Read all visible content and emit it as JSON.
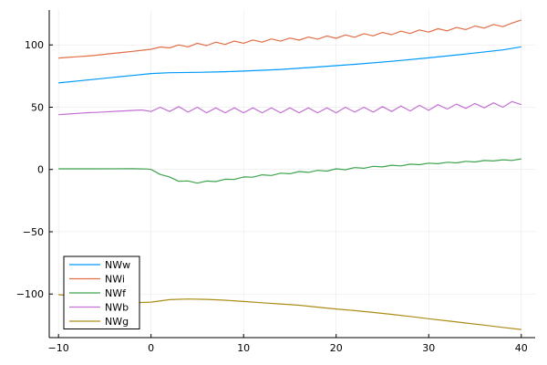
{
  "chart_data": {
    "type": "line",
    "title": "",
    "xlabel": "",
    "ylabel": "",
    "xlim": [
      -11,
      41.5
    ],
    "ylim": [
      -135,
      128
    ],
    "x_ticks": [
      -10,
      0,
      10,
      20,
      30,
      40
    ],
    "y_ticks": [
      -100,
      -50,
      0,
      50,
      100
    ],
    "x_tick_labels": [
      "−10",
      "0",
      "10",
      "20",
      "30",
      "40"
    ],
    "y_tick_labels": [
      "−100",
      "−50",
      "0",
      "50",
      "100"
    ],
    "grid": true,
    "legend_position": "bottom-left",
    "series": [
      {
        "name": "NWw",
        "color": "#009AFA",
        "points": [
          [
            -10,
            69.5
          ],
          [
            -8,
            71
          ],
          [
            -6,
            72.5
          ],
          [
            -4,
            74
          ],
          [
            -2,
            75.5
          ],
          [
            0,
            77
          ],
          [
            2,
            77.7
          ],
          [
            5,
            78
          ],
          [
            8,
            78.5
          ],
          [
            10,
            79
          ],
          [
            14,
            80.3
          ],
          [
            18,
            82.3
          ],
          [
            22,
            84.4
          ],
          [
            26,
            86.8
          ],
          [
            30,
            89.6
          ],
          [
            34,
            92.7
          ],
          [
            38,
            96
          ],
          [
            40,
            98.5
          ]
        ]
      },
      {
        "name": "NWi",
        "color": "#E36F47",
        "points": [
          [
            -10,
            89.5
          ],
          [
            -9,
            90
          ],
          [
            -8,
            90.5
          ],
          [
            -7,
            91
          ],
          [
            -6,
            91.7
          ],
          [
            -5,
            92.5
          ],
          [
            -4,
            93.3
          ],
          [
            -3,
            94
          ],
          [
            -2,
            94.8
          ],
          [
            -1,
            95.7
          ],
          [
            0,
            96.5
          ],
          [
            1,
            98.3
          ],
          [
            2,
            97.6
          ],
          [
            3,
            100
          ],
          [
            4,
            98.4
          ],
          [
            5,
            101.3
          ],
          [
            6,
            99.4
          ],
          [
            7,
            102.2
          ],
          [
            8,
            100.4
          ],
          [
            9,
            103.1
          ],
          [
            10,
            101.3
          ],
          [
            11,
            104
          ],
          [
            12,
            102.2
          ],
          [
            13,
            104.8
          ],
          [
            14,
            103
          ],
          [
            15,
            105.5
          ],
          [
            16,
            103.8
          ],
          [
            17,
            106.3
          ],
          [
            18,
            104.6
          ],
          [
            19,
            107.2
          ],
          [
            20,
            105.3
          ],
          [
            21,
            108
          ],
          [
            22,
            106.2
          ],
          [
            23,
            109
          ],
          [
            24,
            107.3
          ],
          [
            25,
            110
          ],
          [
            26,
            108.2
          ],
          [
            27,
            111
          ],
          [
            28,
            109.2
          ],
          [
            29,
            112
          ],
          [
            30,
            110.3
          ],
          [
            31,
            113
          ],
          [
            32,
            111.3
          ],
          [
            33,
            114
          ],
          [
            34,
            112.3
          ],
          [
            35,
            115.2
          ],
          [
            36,
            113.5
          ],
          [
            37,
            116.4
          ],
          [
            38,
            114.7
          ],
          [
            39,
            117.5
          ],
          [
            40,
            120
          ]
        ]
      },
      {
        "name": "NWf",
        "color": "#3EA44E",
        "points": [
          [
            -10,
            0.5
          ],
          [
            -6,
            0.5
          ],
          [
            -2,
            0.6
          ],
          [
            -0.5,
            0.4
          ],
          [
            0,
            0
          ],
          [
            1,
            -4
          ],
          [
            2,
            -6
          ],
          [
            3,
            -9.5
          ],
          [
            4,
            -9.2
          ],
          [
            5,
            -11
          ],
          [
            6,
            -9.3
          ],
          [
            7,
            -9.7
          ],
          [
            8,
            -7.8
          ],
          [
            9,
            -8
          ],
          [
            10,
            -6
          ],
          [
            11,
            -6.2
          ],
          [
            12,
            -4.3
          ],
          [
            13,
            -4.8
          ],
          [
            14,
            -3
          ],
          [
            15,
            -3.4
          ],
          [
            16,
            -1.7
          ],
          [
            17,
            -2.3
          ],
          [
            18,
            -0.7
          ],
          [
            19,
            -1.3
          ],
          [
            20,
            0.5
          ],
          [
            21,
            -0.2
          ],
          [
            22,
            1.5
          ],
          [
            23,
            1
          ],
          [
            24,
            2.5
          ],
          [
            25,
            2.1
          ],
          [
            26,
            3.4
          ],
          [
            27,
            2.9
          ],
          [
            28,
            4.3
          ],
          [
            29,
            3.8
          ],
          [
            30,
            5.1
          ],
          [
            31,
            4.6
          ],
          [
            32,
            5.8
          ],
          [
            33,
            5.3
          ],
          [
            34,
            6.5
          ],
          [
            35,
            6
          ],
          [
            36,
            7.2
          ],
          [
            37,
            6.8
          ],
          [
            38,
            7.8
          ],
          [
            39,
            7.3
          ],
          [
            40,
            8.5
          ]
        ]
      },
      {
        "name": "NWb",
        "color": "#C270D2",
        "points": [
          [
            -10,
            44
          ],
          [
            -9,
            44.5
          ],
          [
            -8,
            45
          ],
          [
            -7,
            45.5
          ],
          [
            -6,
            45.8
          ],
          [
            -5,
            46.2
          ],
          [
            -4,
            46.6
          ],
          [
            -3,
            47
          ],
          [
            -2,
            47.4
          ],
          [
            -1,
            47.8
          ],
          [
            0,
            46.5
          ],
          [
            1,
            50
          ],
          [
            2,
            46.5
          ],
          [
            3,
            50.5
          ],
          [
            4,
            46
          ],
          [
            5,
            50
          ],
          [
            6,
            45.5
          ],
          [
            7,
            49.5
          ],
          [
            8,
            45.5
          ],
          [
            9,
            49.5
          ],
          [
            10,
            45.5
          ],
          [
            11,
            49.5
          ],
          [
            12,
            45.5
          ],
          [
            13,
            49.5
          ],
          [
            14,
            45.5
          ],
          [
            15,
            49.5
          ],
          [
            16,
            45.5
          ],
          [
            17,
            49.5
          ],
          [
            18,
            45.5
          ],
          [
            19,
            49.5
          ],
          [
            20,
            45.5
          ],
          [
            21,
            50
          ],
          [
            22,
            46
          ],
          [
            23,
            50
          ],
          [
            24,
            46
          ],
          [
            25,
            50.5
          ],
          [
            26,
            46.5
          ],
          [
            27,
            51
          ],
          [
            28,
            47
          ],
          [
            29,
            51.5
          ],
          [
            30,
            47.5
          ],
          [
            31,
            52
          ],
          [
            32,
            48.5
          ],
          [
            33,
            52.5
          ],
          [
            34,
            49
          ],
          [
            35,
            53
          ],
          [
            36,
            49.5
          ],
          [
            37,
            53.5
          ],
          [
            38,
            50
          ],
          [
            39,
            54.5
          ],
          [
            40,
            52
          ]
        ]
      },
      {
        "name": "NWg",
        "color": "#AC8D18",
        "points": [
          [
            -10,
            -100.5
          ],
          [
            -8,
            -102
          ],
          [
            -6,
            -103.5
          ],
          [
            -4,
            -105
          ],
          [
            -2,
            -107
          ],
          [
            0,
            -106.5
          ],
          [
            2,
            -104.5
          ],
          [
            4,
            -104
          ],
          [
            6,
            -104.3
          ],
          [
            8,
            -105
          ],
          [
            10,
            -106
          ],
          [
            12,
            -107
          ],
          [
            14,
            -108
          ],
          [
            16,
            -109
          ],
          [
            18,
            -110.5
          ],
          [
            20,
            -112
          ],
          [
            22,
            -113.3
          ],
          [
            24,
            -114.8
          ],
          [
            26,
            -116.3
          ],
          [
            28,
            -118
          ],
          [
            30,
            -119.8
          ],
          [
            32,
            -121.5
          ],
          [
            34,
            -123.3
          ],
          [
            36,
            -125
          ],
          [
            38,
            -126.8
          ],
          [
            40,
            -128.5
          ]
        ]
      }
    ]
  }
}
